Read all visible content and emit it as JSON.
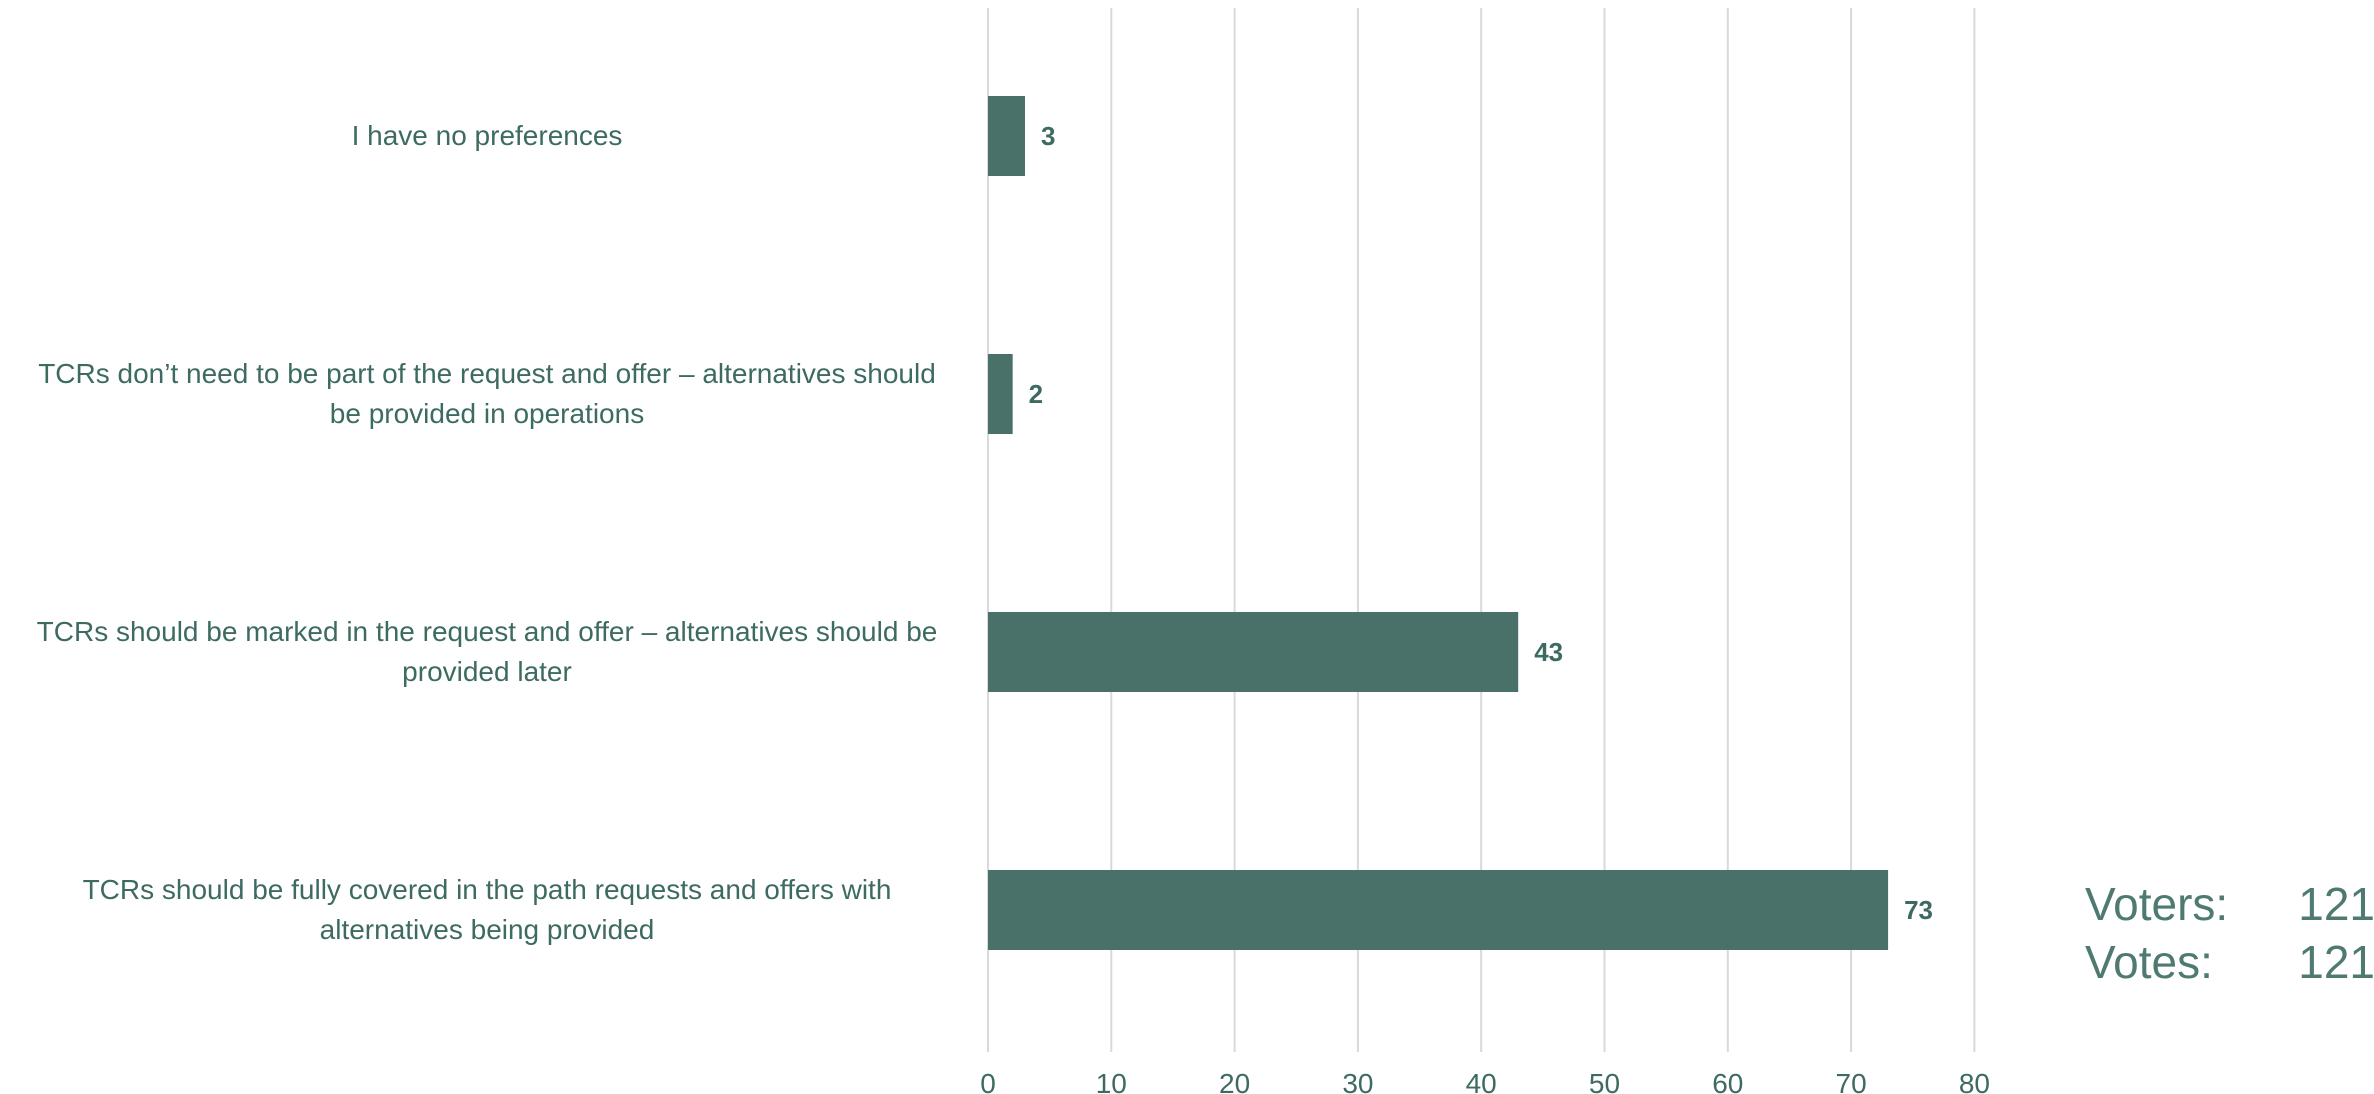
{
  "colors": {
    "bar": "#49716a",
    "text": "#3d6b62",
    "grid": "#d9d9d9"
  },
  "chart_data": {
    "type": "bar",
    "orientation": "horizontal",
    "categories": [
      "I have no preferences",
      "TCRs don’t need to be part of the request and offer – alternatives should be provided in operations",
      "TCRs should be marked in the request and offer – alternatives should be provided later",
      "TCRs should be fully covered in the path requests and offers with alternatives being provided"
    ],
    "category_lines": [
      [
        "I have no preferences"
      ],
      [
        "TCRs don’t need to be part of the request and offer – alternatives should",
        "be provided in operations"
      ],
      [
        "TCRs should be marked in the request and offer – alternatives should be",
        "provided later"
      ],
      [
        "TCRs should be fully covered in the path requests and offers with",
        "alternatives being provided"
      ]
    ],
    "values": [
      3,
      2,
      43,
      73
    ],
    "data_labels": [
      "3",
      "2",
      "43",
      "73"
    ],
    "xlim": [
      0,
      80
    ],
    "xticks": [
      0,
      10,
      20,
      30,
      40,
      50,
      60,
      70,
      80
    ],
    "grid": true,
    "title": "",
    "xlabel": "",
    "ylabel": ""
  },
  "stats": {
    "voters_label": "Voters:",
    "voters_value": "121",
    "votes_label": "Votes:",
    "votes_value": "121"
  }
}
